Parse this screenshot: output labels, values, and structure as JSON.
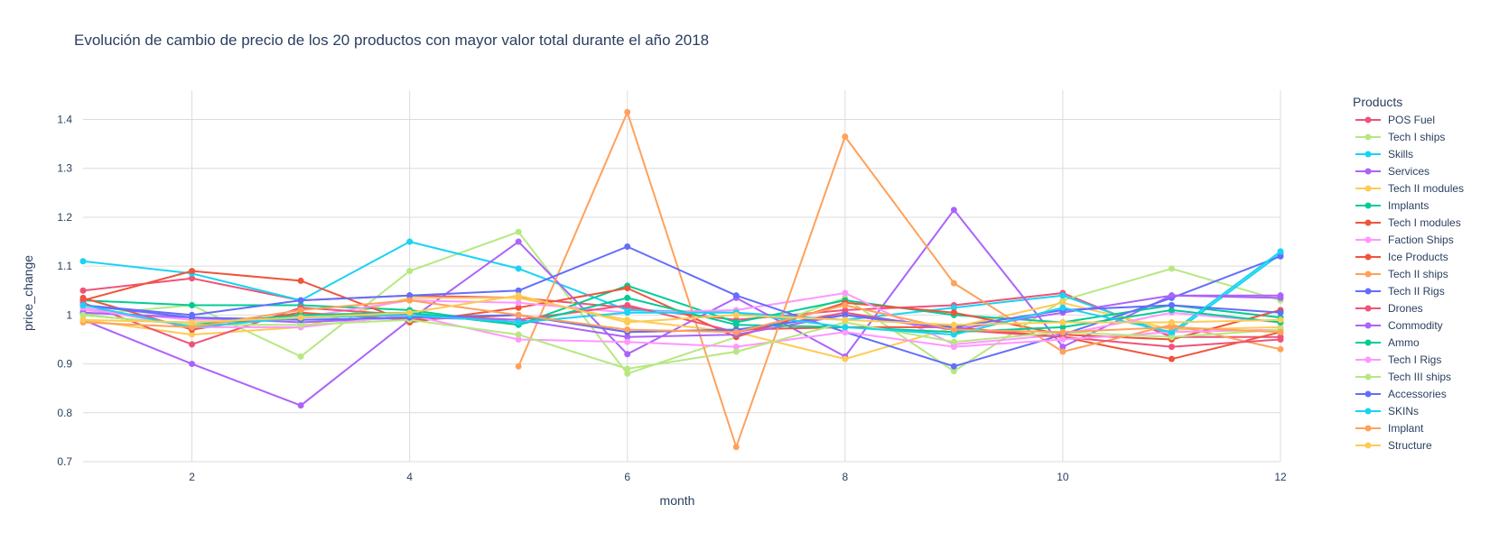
{
  "chart_data": {
    "type": "line",
    "title": "Evolución de cambio de precio de los 20 productos con mayor valor total durante el año 2018",
    "xlabel": "month",
    "ylabel": "price_change",
    "legend_title": "Products",
    "legend_position": "right",
    "grid": true,
    "xlim": [
      1,
      12
    ],
    "ylim": [
      0.7,
      1.46
    ],
    "xticks": [
      2,
      4,
      6,
      8,
      10,
      12
    ],
    "yticks": [
      0.7,
      0.8,
      0.9,
      1,
      1.1,
      1.2,
      1.3,
      1.4
    ],
    "ytick_labels": [
      "0.7",
      "0.8",
      "0.9",
      "1",
      "1.1",
      "1.2",
      "1.3",
      "1.4"
    ],
    "series": [
      {
        "name": "POS Fuel",
        "color": "#ef5378",
        "points": [
          [
            1,
            1.05
          ],
          [
            2,
            1.075
          ],
          [
            3,
            1.03
          ],
          [
            4,
            1.04
          ],
          [
            5,
            1.035
          ],
          [
            6,
            1.015
          ],
          [
            7,
            0.99
          ],
          [
            8,
            1.01
          ],
          [
            9,
            1.02
          ],
          [
            10,
            1.045
          ],
          [
            11,
            0.955
          ],
          [
            12,
            0.955
          ]
        ]
      },
      {
        "name": "Tech I ships",
        "color": "#b6e880",
        "points": [
          [
            1,
            1.0
          ],
          [
            2,
            1.02
          ],
          [
            3,
            0.915
          ],
          [
            4,
            1.09
          ],
          [
            5,
            1.17
          ],
          [
            6,
            0.88
          ],
          [
            7,
            0.955
          ],
          [
            8,
            1.035
          ],
          [
            9,
            0.885
          ],
          [
            10,
            1.03
          ],
          [
            11,
            1.095
          ],
          [
            12,
            1.03
          ]
        ]
      },
      {
        "name": "Skills",
        "color": "#19d3f3",
        "points": [
          [
            1,
            1.11
          ],
          [
            2,
            1.085
          ],
          [
            3,
            1.03
          ],
          [
            4,
            1.15
          ],
          [
            5,
            1.095
          ],
          [
            6,
            1.01
          ],
          [
            7,
            1.005
          ],
          [
            8,
            0.99
          ],
          [
            9,
            1.015
          ],
          [
            10,
            1.04
          ],
          [
            11,
            0.96
          ],
          [
            12,
            1.125
          ]
        ]
      },
      {
        "name": "Services",
        "color": "#ab63fa",
        "points": [
          [
            1,
            0.99
          ],
          [
            2,
            0.9
          ],
          [
            3,
            0.815
          ],
          [
            4,
            0.99
          ],
          [
            5,
            1.15
          ],
          [
            6,
            0.92
          ],
          [
            7,
            1.035
          ],
          [
            8,
            0.915
          ],
          [
            9,
            1.215
          ],
          [
            10,
            0.935
          ],
          [
            11,
            1.04
          ],
          [
            12,
            1.035
          ]
        ]
      },
      {
        "name": "Tech II modules",
        "color": "#fecb52",
        "points": [
          [
            1,
            0.99
          ],
          [
            2,
            0.96
          ],
          [
            3,
            0.975
          ],
          [
            4,
            1.035
          ],
          [
            5,
            1.035
          ],
          [
            6,
            0.99
          ],
          [
            7,
            0.965
          ],
          [
            8,
            0.91
          ],
          [
            9,
            0.975
          ],
          [
            10,
            1.025
          ],
          [
            11,
            0.97
          ],
          [
            12,
            0.975
          ]
        ]
      },
      {
        "name": "Implants",
        "color": "#00cc96",
        "points": [
          [
            1,
            1.03
          ],
          [
            2,
            1.02
          ],
          [
            3,
            1.02
          ],
          [
            4,
            1.01
          ],
          [
            5,
            0.98
          ],
          [
            6,
            1.06
          ],
          [
            7,
            0.985
          ],
          [
            8,
            1.03
          ],
          [
            9,
            1.0
          ],
          [
            10,
            0.985
          ],
          [
            11,
            1.02
          ],
          [
            12,
            0.995
          ]
        ]
      },
      {
        "name": "Tech I modules",
        "color": "#ef553b",
        "points": [
          [
            1,
            1.03
          ],
          [
            2,
            1.09
          ],
          [
            3,
            1.07
          ],
          [
            4,
            0.985
          ],
          [
            5,
            1.015
          ],
          [
            6,
            1.055
          ],
          [
            7,
            0.955
          ],
          [
            8,
            1.025
          ],
          [
            9,
            1.005
          ],
          [
            10,
            0.96
          ],
          [
            11,
            0.95
          ],
          [
            12,
            1.01
          ]
        ]
      },
      {
        "name": "Faction Ships",
        "color": "#ff97ff",
        "points": [
          [
            1,
            1.01
          ],
          [
            2,
            0.99
          ],
          [
            3,
            0.995
          ],
          [
            4,
            1.03
          ],
          [
            5,
            1.025
          ],
          [
            6,
            1.005
          ],
          [
            7,
            1.01
          ],
          [
            8,
            1.045
          ],
          [
            9,
            0.94
          ],
          [
            10,
            0.96
          ],
          [
            11,
            1.005
          ],
          [
            12,
            0.985
          ]
        ]
      },
      {
        "name": "Ice Products",
        "color": "#ef553b",
        "points": [
          [
            1,
            1.035
          ],
          [
            2,
            0.97
          ],
          [
            3,
            1.005
          ],
          [
            4,
            0.99
          ],
          [
            5,
            1.0
          ],
          [
            6,
            0.965
          ],
          [
            7,
            0.97
          ],
          [
            8,
            0.975
          ],
          [
            9,
            0.975
          ],
          [
            10,
            0.955
          ],
          [
            11,
            0.91
          ],
          [
            12,
            0.965
          ]
        ]
      },
      {
        "name": "Tech II ships",
        "color": "#ffa15a",
        "points": [
          [
            5,
            0.895
          ],
          [
            6,
            1.415
          ],
          [
            7,
            0.73
          ],
          [
            8,
            1.365
          ],
          [
            9,
            1.065
          ],
          [
            10,
            0.925
          ],
          [
            11,
            0.98
          ],
          [
            12,
            0.93
          ]
        ]
      },
      {
        "name": "Tech II Rigs",
        "color": "#636efa",
        "points": [
          [
            1,
            1.02
          ],
          [
            2,
            1.0
          ],
          [
            3,
            1.03
          ],
          [
            4,
            1.04
          ],
          [
            5,
            1.05
          ],
          [
            6,
            1.14
          ],
          [
            7,
            1.04
          ],
          [
            8,
            0.965
          ],
          [
            9,
            0.895
          ],
          [
            10,
            0.96
          ],
          [
            11,
            1.035
          ],
          [
            12,
            1.12
          ]
        ]
      },
      {
        "name": "Drones",
        "color": "#ef5378",
        "points": [
          [
            1,
            1.025
          ],
          [
            2,
            0.94
          ],
          [
            3,
            1.015
          ],
          [
            4,
            1.0
          ],
          [
            5,
            0.99
          ],
          [
            6,
            1.02
          ],
          [
            7,
            0.965
          ],
          [
            8,
            1.005
          ],
          [
            9,
            0.97
          ],
          [
            10,
            0.955
          ],
          [
            11,
            0.935
          ],
          [
            12,
            0.95
          ]
        ]
      },
      {
        "name": "Commodity",
        "color": "#ab63fa",
        "points": [
          [
            1,
            1.005
          ],
          [
            2,
            0.995
          ],
          [
            3,
            0.985
          ],
          [
            4,
            0.995
          ],
          [
            5,
            0.99
          ],
          [
            6,
            0.955
          ],
          [
            7,
            0.96
          ],
          [
            8,
            1.0
          ],
          [
            9,
            0.97
          ],
          [
            10,
            1.005
          ],
          [
            11,
            1.04
          ],
          [
            12,
            1.04
          ]
        ]
      },
      {
        "name": "Ammo",
        "color": "#00cc96",
        "points": [
          [
            1,
            1.0
          ],
          [
            2,
            0.98
          ],
          [
            3,
            1.0
          ],
          [
            4,
            1.005
          ],
          [
            5,
            0.98
          ],
          [
            6,
            1.035
          ],
          [
            7,
            0.98
          ],
          [
            8,
            0.975
          ],
          [
            9,
            0.965
          ],
          [
            10,
            0.975
          ],
          [
            11,
            1.01
          ],
          [
            12,
            0.985
          ]
        ]
      },
      {
        "name": "Tech I Rigs",
        "color": "#ff97ff",
        "points": [
          [
            1,
            1.015
          ],
          [
            2,
            0.975
          ],
          [
            3,
            0.975
          ],
          [
            4,
            1.0
          ],
          [
            5,
            0.95
          ],
          [
            6,
            0.945
          ],
          [
            7,
            0.935
          ],
          [
            8,
            0.965
          ],
          [
            9,
            0.935
          ],
          [
            10,
            0.95
          ],
          [
            11,
            0.965
          ],
          [
            12,
            0.97
          ]
        ]
      },
      {
        "name": "Tech III ships",
        "color": "#b6e880",
        "points": [
          [
            1,
            1.0
          ],
          [
            2,
            0.98
          ],
          [
            3,
            0.98
          ],
          [
            4,
            0.99
          ],
          [
            5,
            0.96
          ],
          [
            6,
            0.89
          ],
          [
            7,
            0.925
          ],
          [
            8,
            0.985
          ],
          [
            9,
            0.945
          ],
          [
            10,
            0.965
          ],
          [
            11,
            0.955
          ],
          [
            12,
            0.97
          ]
        ]
      },
      {
        "name": "Accessories",
        "color": "#636efa",
        "points": [
          [
            1,
            1.02
          ],
          [
            2,
            0.995
          ],
          [
            3,
            0.99
          ],
          [
            4,
            0.995
          ],
          [
            5,
            1.0
          ],
          [
            6,
            0.965
          ],
          [
            7,
            0.97
          ],
          [
            8,
            1.0
          ],
          [
            9,
            0.975
          ],
          [
            10,
            1.01
          ],
          [
            11,
            1.02
          ],
          [
            12,
            1.005
          ]
        ]
      },
      {
        "name": "SKINs",
        "color": "#19d3f3",
        "points": [
          [
            1,
            1.02
          ],
          [
            2,
            0.975
          ],
          [
            3,
            0.995
          ],
          [
            4,
            1.0
          ],
          [
            5,
            0.985
          ],
          [
            6,
            1.005
          ],
          [
            7,
            1.005
          ],
          [
            8,
            0.975
          ],
          [
            9,
            0.96
          ],
          [
            10,
            1.015
          ],
          [
            11,
            0.965
          ],
          [
            12,
            1.13
          ]
        ]
      },
      {
        "name": "Implant",
        "color": "#ffa15a",
        "points": [
          [
            1,
            0.985
          ],
          [
            2,
            0.975
          ],
          [
            3,
            1.01
          ],
          [
            4,
            1.03
          ],
          [
            5,
            1.0
          ],
          [
            6,
            0.97
          ],
          [
            7,
            0.965
          ],
          [
            8,
            1.02
          ],
          [
            9,
            0.97
          ],
          [
            10,
            0.965
          ],
          [
            11,
            0.975
          ],
          [
            12,
            0.965
          ]
        ]
      },
      {
        "name": "Structure",
        "color": "#fecb52",
        "points": [
          [
            1,
            0.99
          ],
          [
            2,
            0.985
          ],
          [
            3,
            0.995
          ],
          [
            4,
            1.005
          ],
          [
            5,
            1.04
          ],
          [
            6,
            0.985
          ],
          [
            7,
            1.0
          ],
          [
            8,
            0.99
          ],
          [
            9,
            0.98
          ],
          [
            10,
            0.985
          ],
          [
            11,
            0.985
          ],
          [
            12,
            0.99
          ]
        ]
      }
    ]
  }
}
